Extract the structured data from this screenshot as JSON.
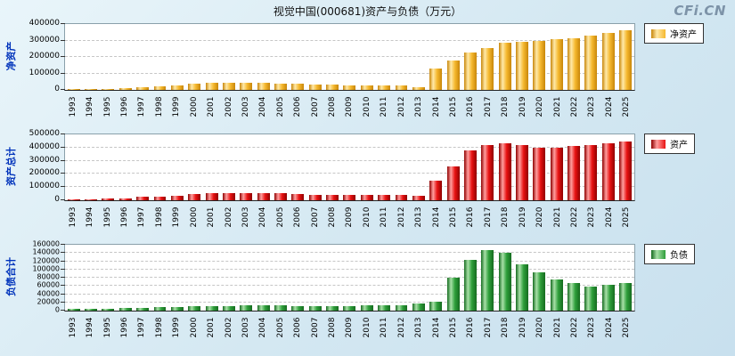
{
  "header": {
    "title": "视觉中国(000681)资产与负债（万元）",
    "logo": "CFi.CN"
  },
  "chart_data": [
    {
      "type": "bar",
      "axis_title": "净资产",
      "legend": "净资产",
      "color": {
        "base": "#f5b82e",
        "light": "#ffe9a8",
        "dark": "#c8860a"
      },
      "ylim": [
        0,
        400000
      ],
      "ytick_step": 100000,
      "grid": "dashed-horizontal",
      "legend_position": "right-top",
      "categories": [
        "1993",
        "1994",
        "1995",
        "1996",
        "1997",
        "1998",
        "1999",
        "2000",
        "2001",
        "2002",
        "2003",
        "2004",
        "2005",
        "2006",
        "2007",
        "2008",
        "2009",
        "2010",
        "2011",
        "2012",
        "2013",
        "2014",
        "2015",
        "2016",
        "2017",
        "2018",
        "2019",
        "2020",
        "2021",
        "2022",
        "2023",
        "2024",
        "2025"
      ],
      "values": [
        4000,
        5500,
        7000,
        9000,
        17000,
        21000,
        25000,
        37000,
        41000,
        43000,
        45000,
        43000,
        40000,
        36000,
        33000,
        31000,
        29000,
        28000,
        27000,
        25000,
        16000,
        132000,
        178000,
        226000,
        256000,
        284000,
        291000,
        297000,
        306000,
        316000,
        330000,
        346000,
        362000
      ]
    },
    {
      "type": "bar",
      "axis_title": "资产总计",
      "legend": "资产",
      "color": {
        "base": "#e81212",
        "light": "#ff9e9e",
        "dark": "#8f0000"
      },
      "ylim": [
        0,
        500000
      ],
      "ytick_step": 100000,
      "grid": "dashed-horizontal",
      "legend_position": "right-top",
      "categories": [
        "1993",
        "1994",
        "1995",
        "1996",
        "1997",
        "1998",
        "1999",
        "2000",
        "2001",
        "2002",
        "2003",
        "2004",
        "2005",
        "2006",
        "2007",
        "2008",
        "2009",
        "2010",
        "2011",
        "2012",
        "2013",
        "2014",
        "2015",
        "2016",
        "2017",
        "2018",
        "2019",
        "2020",
        "2021",
        "2022",
        "2023",
        "2024",
        "2025"
      ],
      "values": [
        8000,
        9500,
        11000,
        13000,
        24000,
        29000,
        34000,
        47000,
        51000,
        54000,
        57000,
        55000,
        51000,
        47000,
        44000,
        42000,
        40000,
        40000,
        40000,
        38000,
        35000,
        152000,
        256000,
        378000,
        422000,
        430000,
        416000,
        396000,
        402000,
        410000,
        421000,
        434000,
        446000
      ]
    },
    {
      "type": "bar",
      "axis_title": "负债合计",
      "legend": "负债",
      "color": {
        "base": "#2e9e3a",
        "light": "#a8e0a8",
        "dark": "#156b1f"
      },
      "ylim": [
        0,
        160000
      ],
      "ytick_step": 20000,
      "grid": "dashed-horizontal",
      "legend_position": "right-top",
      "categories": [
        "1993",
        "1994",
        "1995",
        "1996",
        "1997",
        "1998",
        "1999",
        "2000",
        "2001",
        "2002",
        "2003",
        "2004",
        "2005",
        "2006",
        "2007",
        "2008",
        "2009",
        "2010",
        "2011",
        "2012",
        "2013",
        "2014",
        "2015",
        "2016",
        "2017",
        "2018",
        "2019",
        "2020",
        "2021",
        "2022",
        "2023",
        "2024",
        "2025"
      ],
      "values": [
        4000,
        4500,
        5000,
        5500,
        7500,
        8500,
        9500,
        10500,
        11000,
        11500,
        12500,
        12500,
        12000,
        11500,
        11500,
        11000,
        11000,
        12000,
        13000,
        13000,
        18000,
        21000,
        79000,
        124000,
        148000,
        140000,
        112000,
        92000,
        76000,
        68000,
        58000,
        62000,
        68000
      ]
    }
  ]
}
